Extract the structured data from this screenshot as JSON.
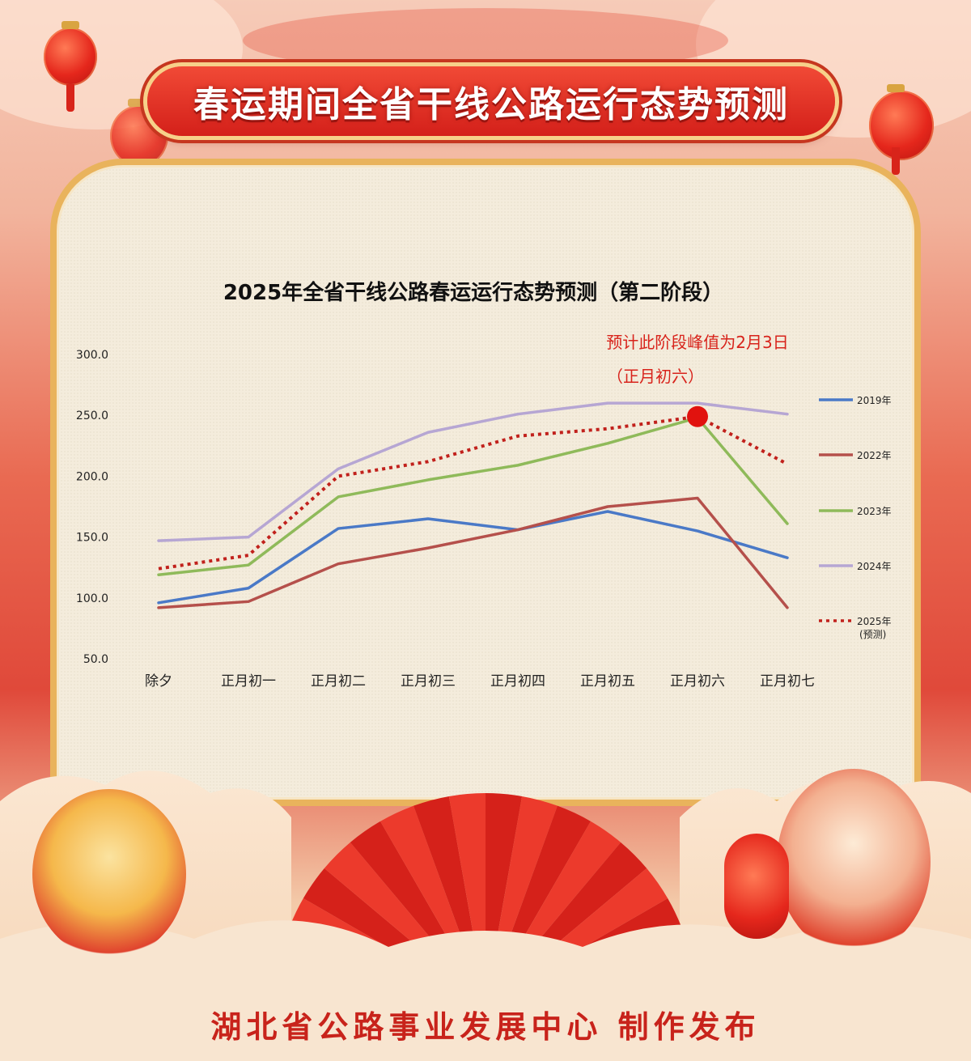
{
  "banner_title": "春运期间全省干线公路运行态势预测",
  "footer_text": "湖北省公路事业发展中心 制作发布",
  "chart_data": {
    "type": "line",
    "title": "2025年全省干线公路春运运行态势预测（第二阶段）",
    "categories": [
      "除夕",
      "正月初一",
      "正月初二",
      "正月初三",
      "正月初四",
      "正月初五",
      "正月初六",
      "正月初七"
    ],
    "y_ticks": [
      "300.0",
      "250.0",
      "200.0",
      "150.0",
      "100.0",
      "50.0"
    ],
    "ylim": [
      50,
      300
    ],
    "grid": false,
    "legend_position": "right",
    "series": [
      {
        "name": "2019年",
        "color": "#4a79c7",
        "dashed": false,
        "values": [
          96,
          108,
          157,
          165,
          156,
          171,
          155,
          133
        ]
      },
      {
        "name": "2022年",
        "color": "#b5504b",
        "dashed": false,
        "values": [
          92,
          97,
          128,
          141,
          156,
          175,
          182,
          92
        ]
      },
      {
        "name": "2023年",
        "color": "#8fba5a",
        "dashed": false,
        "values": [
          119,
          127,
          183,
          197,
          209,
          227,
          248,
          161
        ]
      },
      {
        "name": "2024年",
        "color": "#b6a6d3",
        "dashed": false,
        "values": [
          147,
          150,
          206,
          236,
          251,
          260,
          260,
          251
        ]
      },
      {
        "name": "2025年",
        "color": "#c1211c",
        "dashed": true,
        "values": [
          124,
          135,
          200,
          212,
          233,
          239,
          249,
          210
        ]
      }
    ],
    "legend_extra": "(预测)",
    "peak_marker": {
      "category": "正月初六",
      "value": 249,
      "color": "#e1120e"
    },
    "annotation_line1": "预计此阶段峰值为2月3日",
    "annotation_line2": "（正月初六）",
    "annotation_color": "#d8231b"
  }
}
